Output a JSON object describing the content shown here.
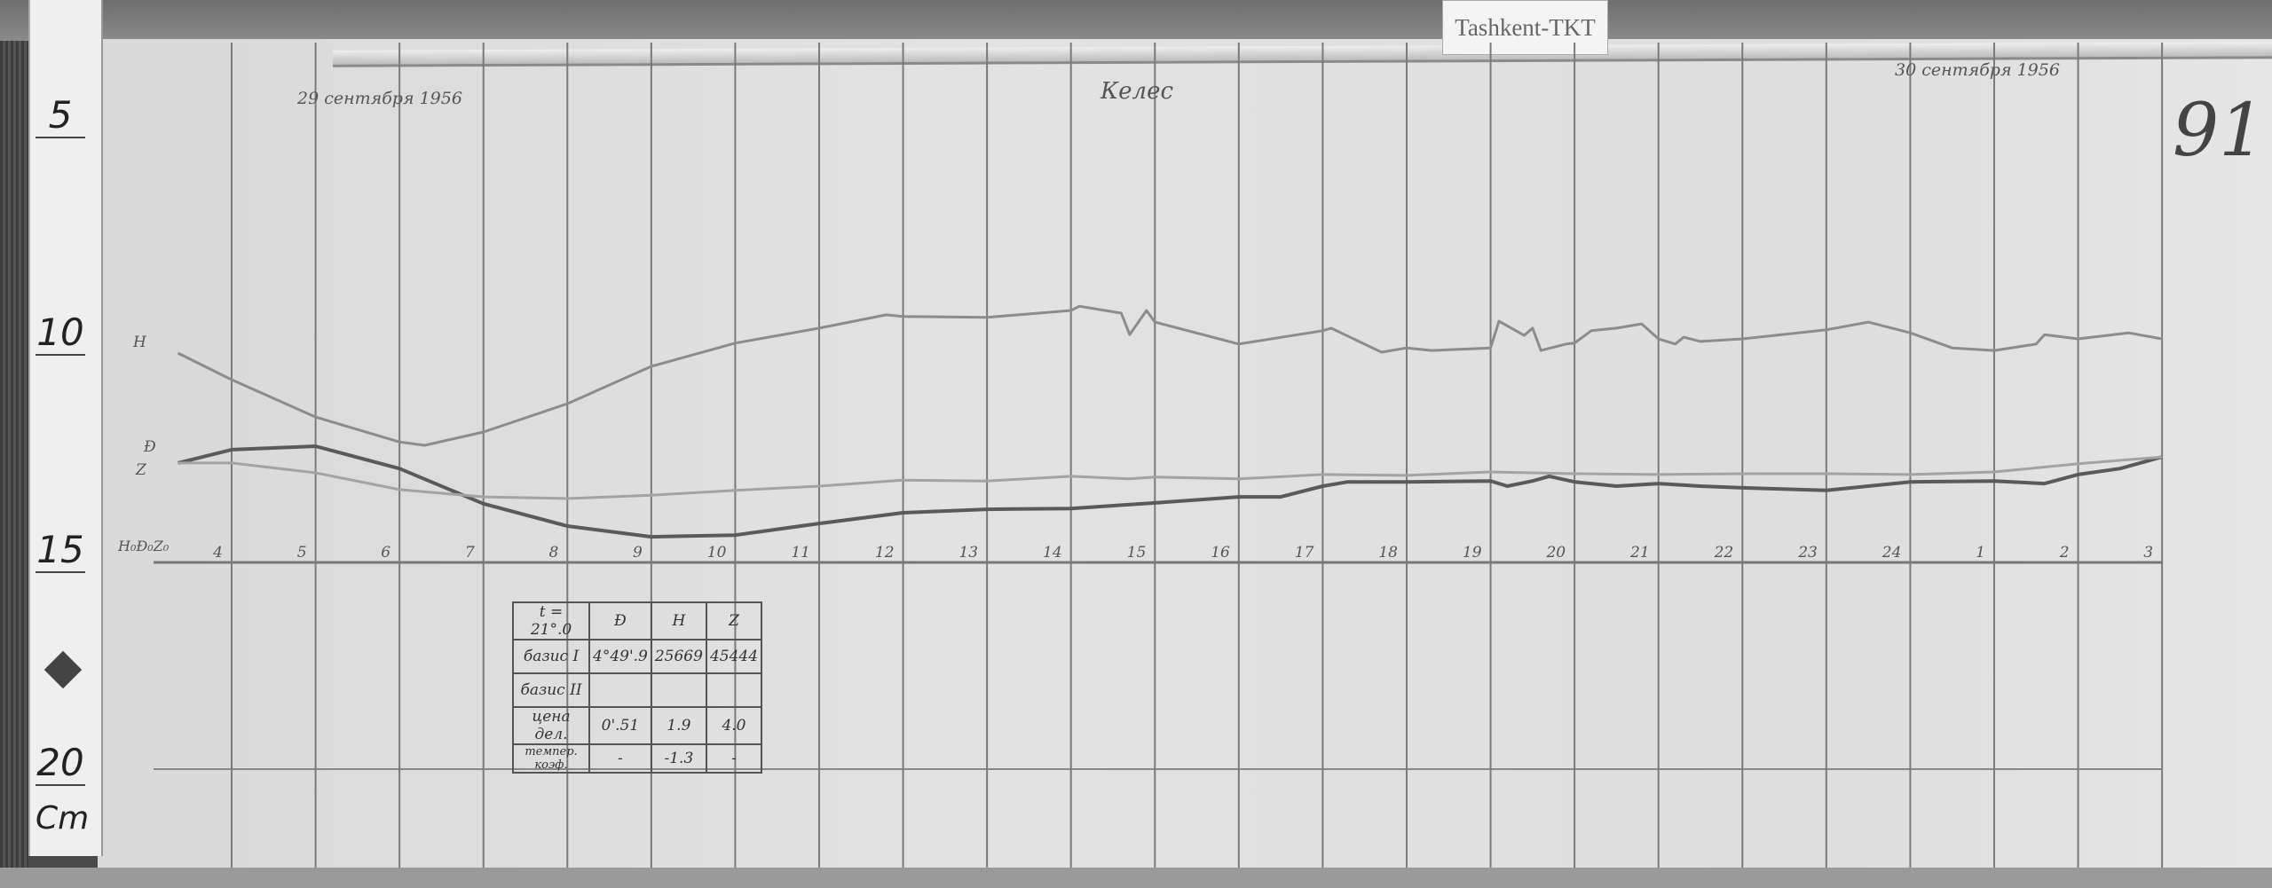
{
  "station_tag": "Tashkent-TKT",
  "sheet_number": "91",
  "date_start": "29 сентября 1956",
  "date_end": "30 сентября 1956",
  "observatory": "Келес",
  "ruler": {
    "marks": [
      "5",
      "10",
      "15",
      "20"
    ],
    "unit": "Cm"
  },
  "trace_labels": {
    "H": "H",
    "D": "Ð",
    "Z": "Z",
    "baseline": "H₀Ð₀Z₀"
  },
  "table": {
    "header": [
      "t = 21°.0",
      "Ð",
      "H",
      "Z"
    ],
    "rows": [
      [
        "базис I",
        "4°49'.9",
        "25669",
        "45444"
      ],
      [
        "базис II",
        "",
        "",
        ""
      ],
      [
        "цена дел.",
        "0'.51",
        "1.9",
        "4.0"
      ],
      [
        "темпер. коэф.",
        "-",
        "-1.3",
        "-"
      ]
    ]
  },
  "chart_data": {
    "type": "line",
    "title": "",
    "xlabel": "",
    "ylabel": "",
    "x_tick_labels": [
      "4",
      "5",
      "6",
      "7",
      "8",
      "9",
      "10",
      "11",
      "12",
      "13",
      "14",
      "15",
      "16",
      "17",
      "18",
      "19",
      "20",
      "21",
      "22",
      "23",
      "24",
      "1",
      "2",
      "3"
    ],
    "y_units_note": "Cm",
    "grid": true,
    "point_format": [
      "day",
      "hour",
      "ruler_cm"
    ],
    "series": [
      {
        "name": "H",
        "color": "#8c8c8c",
        "points": [
          [
            29,
            3.36,
            9.71
          ],
          [
            29,
            4,
            10.33
          ],
          [
            29,
            5,
            11.2
          ],
          [
            29,
            6,
            11.78
          ],
          [
            29,
            6.3,
            11.86
          ],
          [
            29,
            7,
            11.55
          ],
          [
            29,
            8,
            10.89
          ],
          [
            29,
            9,
            10.02
          ],
          [
            29,
            10,
            9.48
          ],
          [
            29,
            11,
            9.13
          ],
          [
            29,
            11.8,
            8.82
          ],
          [
            29,
            12,
            8.86
          ],
          [
            29,
            13,
            8.88
          ],
          [
            29,
            14,
            8.72
          ],
          [
            29,
            14.1,
            8.62
          ],
          [
            29,
            14.6,
            8.78
          ],
          [
            29,
            14.7,
            9.28
          ],
          [
            29,
            14.9,
            8.72
          ],
          [
            29,
            15,
            8.99
          ],
          [
            29,
            16,
            9.5
          ],
          [
            29,
            17,
            9.19
          ],
          [
            29,
            17.1,
            9.13
          ],
          [
            29,
            17.7,
            9.69
          ],
          [
            29,
            18,
            9.59
          ],
          [
            29,
            18.3,
            9.65
          ],
          [
            29,
            19,
            9.59
          ],
          [
            29,
            19.1,
            8.97
          ],
          [
            29,
            19.4,
            9.3
          ],
          [
            29,
            19.5,
            9.13
          ],
          [
            29,
            19.6,
            9.65
          ],
          [
            29,
            19.9,
            9.5
          ],
          [
            29,
            20,
            9.48
          ],
          [
            29,
            20.2,
            9.19
          ],
          [
            29,
            20.5,
            9.13
          ],
          [
            29,
            20.8,
            9.03
          ],
          [
            29,
            21,
            9.38
          ],
          [
            29,
            21.2,
            9.5
          ],
          [
            29,
            21.3,
            9.34
          ],
          [
            29,
            21.5,
            9.44
          ],
          [
            29,
            22,
            9.38
          ],
          [
            29,
            23,
            9.17
          ],
          [
            29,
            23.5,
            8.99
          ],
          [
            29,
            24,
            9.24
          ],
          [
            30,
            0.5,
            9.59
          ],
          [
            30,
            1,
            9.65
          ],
          [
            30,
            1.5,
            9.5
          ],
          [
            30,
            1.6,
            9.28
          ],
          [
            30,
            2,
            9.38
          ],
          [
            30,
            2.6,
            9.24
          ],
          [
            30,
            3,
            9.38
          ]
        ]
      },
      {
        "name": "Ð",
        "color": "#5a5a5a",
        "points": [
          [
            29,
            3.36,
            12.27
          ],
          [
            29,
            4,
            11.96
          ],
          [
            29,
            5,
            11.88
          ],
          [
            29,
            6,
            12.4
          ],
          [
            29,
            7,
            13.22
          ],
          [
            29,
            8,
            13.74
          ],
          [
            29,
            9,
            13.99
          ],
          [
            29,
            10,
            13.95
          ],
          [
            29,
            11,
            13.68
          ],
          [
            29,
            12,
            13.43
          ],
          [
            29,
            13,
            13.35
          ],
          [
            29,
            14,
            13.33
          ],
          [
            29,
            15,
            13.2
          ],
          [
            29,
            16,
            13.06
          ],
          [
            29,
            16.5,
            13.06
          ],
          [
            29,
            17,
            12.81
          ],
          [
            29,
            17.3,
            12.71
          ],
          [
            29,
            18,
            12.71
          ],
          [
            29,
            19,
            12.69
          ],
          [
            29,
            19.2,
            12.81
          ],
          [
            29,
            19.5,
            12.69
          ],
          [
            29,
            19.7,
            12.58
          ],
          [
            29,
            20,
            12.71
          ],
          [
            29,
            20.5,
            12.81
          ],
          [
            29,
            21,
            12.75
          ],
          [
            29,
            21.5,
            12.81
          ],
          [
            29,
            22,
            12.85
          ],
          [
            29,
            23,
            12.91
          ],
          [
            29,
            24,
            12.71
          ],
          [
            30,
            1,
            12.69
          ],
          [
            30,
            1.6,
            12.75
          ],
          [
            30,
            2,
            12.54
          ],
          [
            30,
            2.5,
            12.4
          ],
          [
            30,
            3,
            12.13
          ]
        ]
      },
      {
        "name": "Z",
        "color": "#a3a3a3",
        "points": [
          [
            29,
            3.36,
            12.27
          ],
          [
            29,
            4,
            12.27
          ],
          [
            29,
            5,
            12.5
          ],
          [
            29,
            6,
            12.89
          ],
          [
            29,
            7,
            13.06
          ],
          [
            29,
            8,
            13.1
          ],
          [
            29,
            9,
            13.02
          ],
          [
            29,
            10,
            12.91
          ],
          [
            29,
            11,
            12.81
          ],
          [
            29,
            12,
            12.67
          ],
          [
            29,
            13,
            12.69
          ],
          [
            29,
            14,
            12.58
          ],
          [
            29,
            14.7,
            12.64
          ],
          [
            29,
            15,
            12.6
          ],
          [
            29,
            16,
            12.64
          ],
          [
            29,
            17,
            12.54
          ],
          [
            29,
            18,
            12.56
          ],
          [
            29,
            19,
            12.48
          ],
          [
            29,
            20,
            12.52
          ],
          [
            29,
            21,
            12.54
          ],
          [
            29,
            22,
            12.52
          ],
          [
            29,
            23,
            12.52
          ],
          [
            29,
            24,
            12.54
          ],
          [
            30,
            1,
            12.48
          ],
          [
            30,
            2,
            12.29
          ],
          [
            30,
            3,
            12.13
          ]
        ]
      }
    ]
  }
}
